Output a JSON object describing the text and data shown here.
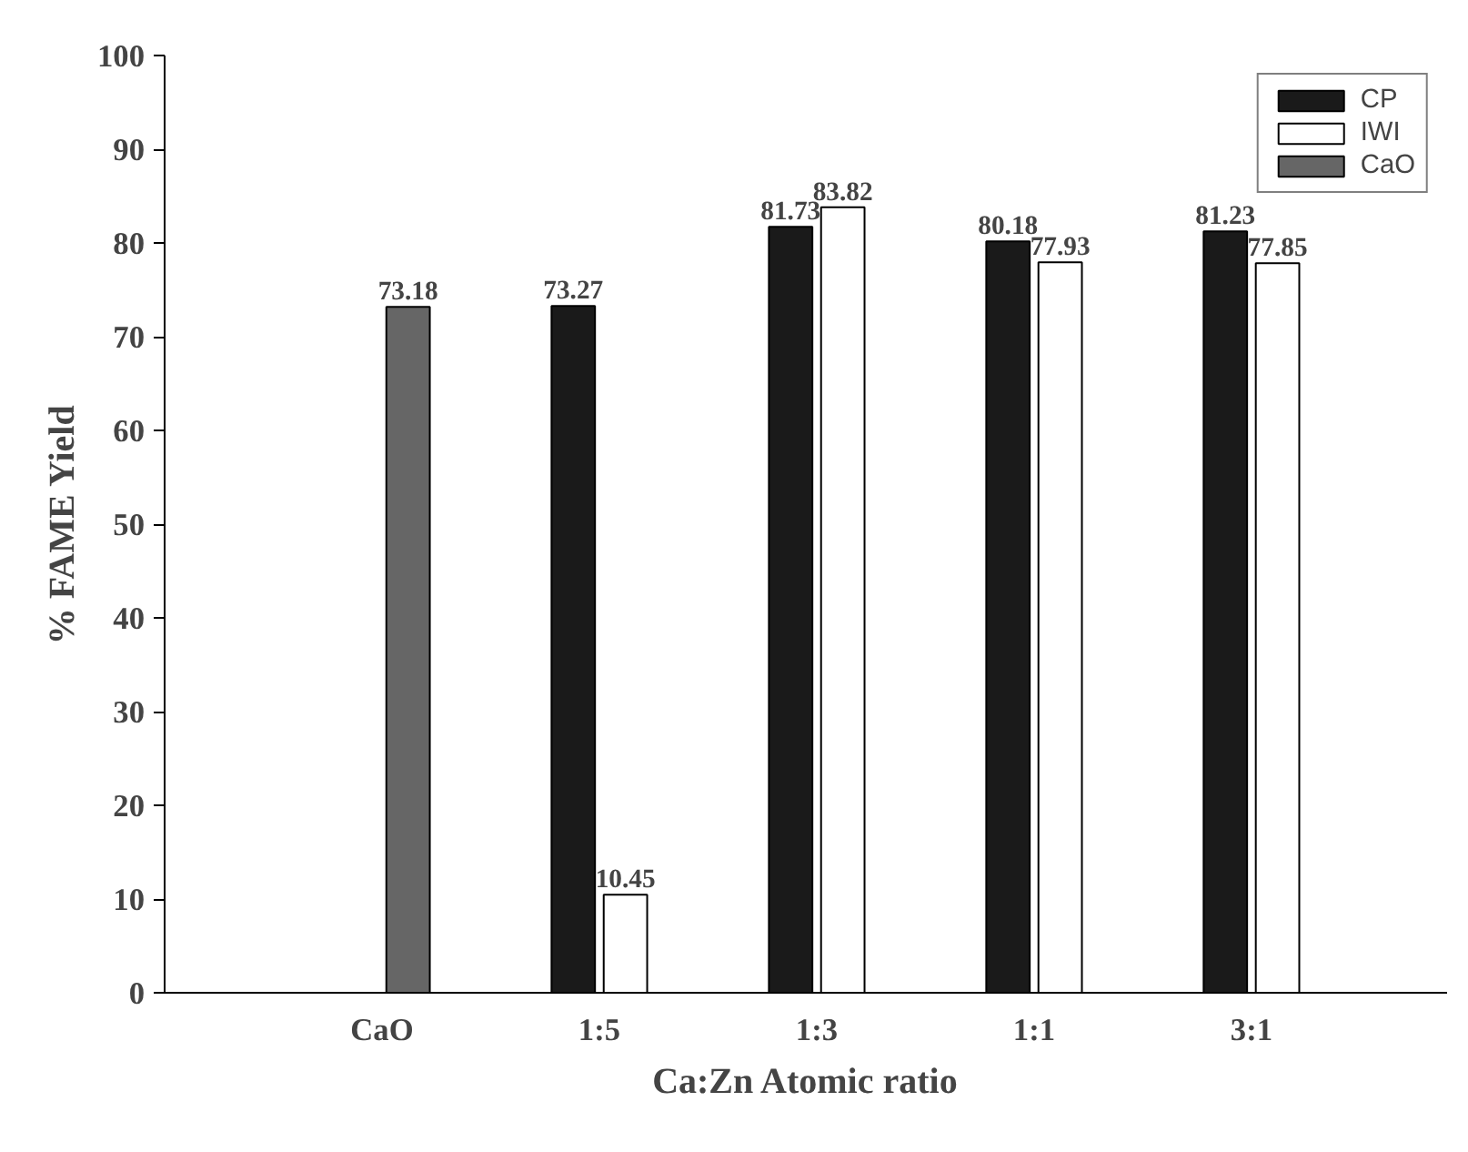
{
  "chart_data": {
    "type": "bar",
    "xlabel": "Ca:Zn Atomic ratio",
    "ylabel": "% FAME Yield",
    "categories": [
      "CaO",
      "1:5",
      "1:3",
      "1:1",
      "3:1"
    ],
    "series": [
      {
        "name": "CP",
        "color": "#1a1a1a",
        "values": [
          null,
          73.27,
          81.73,
          80.18,
          81.23
        ]
      },
      {
        "name": "IWI",
        "color": "#ffffff",
        "values": [
          null,
          10.45,
          83.82,
          77.93,
          77.85
        ]
      },
      {
        "name": "CaO",
        "color": "#666666",
        "values": [
          73.18,
          null,
          null,
          null,
          null
        ]
      }
    ],
    "ylim": [
      0,
      100
    ],
    "yticks": [
      0,
      10,
      20,
      30,
      40,
      50,
      60,
      70,
      80,
      90,
      100
    ],
    "grid": false,
    "legend": "top right",
    "data_labels": true
  }
}
